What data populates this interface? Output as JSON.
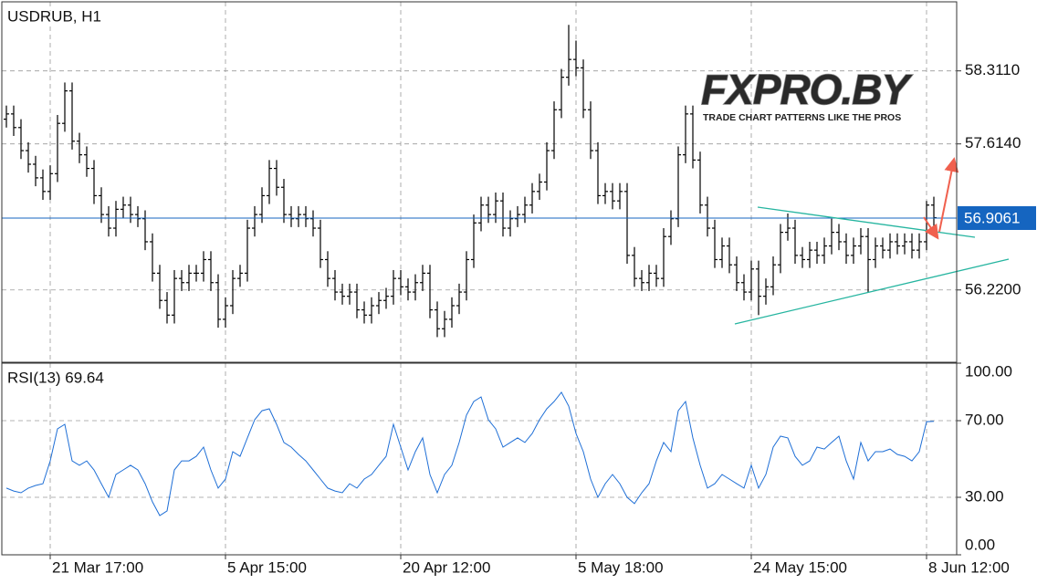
{
  "chart_data": [
    {
      "type": "ohlc",
      "title": "USDRUB, H1",
      "categories": [
        null,
        null,
        null,
        null,
        null,
        null,
        "21 Mar 17:00",
        null,
        null,
        null,
        null,
        null,
        null,
        null,
        null,
        null,
        null,
        null,
        null,
        null,
        null,
        null,
        null,
        null,
        null,
        null,
        null,
        null,
        null,
        null,
        "5 Apr 15:00",
        null,
        null,
        null,
        null,
        null,
        null,
        null,
        null,
        null,
        null,
        null,
        null,
        null,
        null,
        null,
        null,
        null,
        null,
        null,
        null,
        null,
        null,
        null,
        "20 Apr 12:00",
        null,
        null,
        null,
        null,
        null,
        null,
        null,
        null,
        null,
        null,
        null,
        null,
        null,
        null,
        null,
        null,
        null,
        null,
        null,
        null,
        null,
        null,
        null,
        "5 May 18:00",
        null,
        null,
        null,
        null,
        null,
        null,
        null,
        null,
        null,
        null,
        null,
        null,
        null,
        null,
        null,
        null,
        null,
        null,
        null,
        null,
        null,
        null,
        null,
        "24 May 15:00",
        null,
        null,
        null,
        null,
        null,
        null,
        null,
        null,
        null,
        null,
        null,
        null,
        null,
        null,
        null,
        null,
        null,
        null,
        null,
        null,
        null,
        null,
        null,
        "8 Jun 12:00",
        null
      ],
      "open": [
        57.85,
        57.9,
        57.77,
        57.55,
        57.42,
        57.29,
        57.16,
        57.33,
        57.81,
        58.12,
        57.64,
        57.51,
        57.38,
        57.12,
        56.94,
        56.81,
        56.99,
        57.03,
        56.94,
        56.9,
        56.68,
        56.38,
        56.12,
        55.98,
        56.33,
        56.29,
        56.38,
        56.38,
        56.51,
        56.29,
        55.94,
        56.07,
        56.33,
        56.38,
        56.81,
        56.94,
        57.12,
        57.38,
        57.2,
        56.94,
        56.9,
        56.94,
        56.9,
        56.81,
        56.51,
        56.33,
        56.2,
        56.16,
        56.2,
        56.03,
        55.98,
        56.07,
        56.12,
        56.16,
        56.33,
        56.25,
        56.2,
        56.29,
        56.38,
        56.03,
        55.85,
        55.94,
        56.07,
        56.2,
        56.51,
        56.86,
        57.03,
        56.94,
        57.07,
        56.81,
        56.9,
        56.94,
        57.03,
        57.16,
        57.25,
        57.55,
        57.94,
        58.25,
        58.42,
        58.34,
        57.94,
        57.55,
        57.12,
        57.16,
        57.07,
        57.16,
        56.55,
        56.33,
        56.29,
        56.38,
        56.33,
        56.73,
        56.9,
        57.51,
        57.9,
        57.46,
        57.03,
        56.81,
        56.51,
        56.64,
        56.46,
        56.29,
        56.2,
        56.42,
        56.16,
        56.25,
        56.46,
        56.77,
        56.81,
        56.55,
        56.51,
        56.6,
        56.55,
        56.64,
        56.77,
        56.68,
        56.55,
        56.64,
        56.73,
        56.51,
        56.64,
        56.6,
        56.68,
        56.64,
        56.68,
        56.6,
        56.68,
        57.03
      ],
      "high": [
        57.98,
        57.98,
        57.85,
        57.63,
        57.5,
        57.37,
        57.41,
        57.89,
        58.2,
        58.2,
        57.72,
        57.59,
        57.46,
        57.2,
        57.02,
        57.07,
        57.11,
        57.11,
        57.02,
        56.98,
        56.76,
        56.46,
        56.2,
        56.41,
        56.41,
        56.46,
        56.46,
        56.59,
        56.59,
        56.37,
        56.15,
        56.41,
        56.46,
        56.89,
        57.02,
        57.2,
        57.46,
        57.46,
        57.28,
        57.02,
        57.02,
        57.02,
        56.98,
        56.89,
        56.59,
        56.41,
        56.28,
        56.28,
        56.28,
        56.11,
        56.15,
        56.2,
        56.24,
        56.41,
        56.41,
        56.33,
        56.37,
        56.46,
        56.46,
        56.11,
        56.02,
        56.15,
        56.28,
        56.59,
        56.94,
        57.11,
        57.11,
        57.15,
        57.15,
        56.98,
        57.02,
        57.11,
        57.24,
        57.33,
        57.63,
        58.02,
        58.33,
        58.75,
        58.6,
        58.42,
        58.02,
        57.63,
        57.24,
        57.24,
        57.24,
        57.24,
        56.63,
        56.41,
        56.46,
        56.46,
        56.81,
        56.98,
        57.59,
        57.98,
        57.98,
        57.54,
        57.11,
        56.89,
        56.72,
        56.72,
        56.54,
        56.37,
        56.5,
        56.5,
        56.33,
        56.54,
        56.85,
        56.95,
        56.89,
        56.63,
        56.68,
        56.68,
        56.72,
        56.9,
        56.85,
        56.76,
        56.72,
        56.81,
        56.81,
        56.72,
        56.72,
        56.76,
        56.76,
        56.76,
        56.76,
        56.76,
        57.07,
        57.11
      ],
      "low": [
        57.77,
        57.69,
        57.47,
        57.34,
        57.21,
        57.08,
        57.08,
        57.25,
        57.73,
        57.56,
        57.43,
        57.3,
        57.04,
        56.86,
        56.73,
        56.73,
        56.91,
        56.86,
        56.82,
        56.6,
        56.3,
        56.04,
        55.9,
        55.9,
        56.21,
        56.21,
        56.3,
        56.3,
        56.21,
        55.86,
        55.86,
        55.99,
        56.25,
        56.3,
        56.73,
        56.86,
        57.04,
        57.12,
        56.86,
        56.82,
        56.82,
        56.82,
        56.73,
        56.43,
        56.25,
        56.12,
        56.08,
        56.08,
        55.95,
        55.9,
        55.9,
        55.99,
        56.04,
        56.08,
        56.17,
        56.12,
        56.12,
        56.21,
        55.95,
        55.77,
        55.77,
        55.86,
        55.99,
        56.12,
        56.43,
        56.78,
        56.86,
        56.86,
        56.73,
        56.73,
        56.82,
        56.86,
        56.95,
        57.08,
        57.17,
        57.47,
        57.86,
        58.17,
        58.26,
        57.86,
        57.47,
        57.04,
        57.04,
        56.99,
        56.99,
        56.47,
        56.25,
        56.21,
        56.21,
        56.25,
        56.25,
        56.65,
        56.82,
        57.43,
        57.38,
        56.95,
        56.73,
        56.43,
        56.43,
        56.38,
        56.21,
        56.12,
        56.12,
        55.98,
        56.08,
        56.17,
        56.38,
        56.69,
        56.47,
        56.43,
        56.43,
        56.47,
        56.47,
        56.56,
        56.6,
        56.47,
        56.47,
        56.56,
        56.2,
        56.43,
        56.52,
        56.52,
        56.56,
        56.56,
        56.52,
        56.52,
        56.6,
        56.83
      ],
      "close": [
        57.9,
        57.77,
        57.55,
        57.42,
        57.29,
        57.16,
        57.33,
        57.81,
        58.12,
        57.64,
        57.51,
        57.38,
        57.12,
        56.94,
        56.81,
        56.99,
        57.03,
        56.94,
        56.9,
        56.68,
        56.38,
        56.12,
        55.98,
        56.33,
        56.29,
        56.38,
        56.38,
        56.51,
        56.29,
        55.94,
        56.07,
        56.33,
        56.38,
        56.81,
        56.94,
        57.12,
        57.38,
        57.2,
        56.94,
        56.9,
        56.94,
        56.9,
        56.81,
        56.51,
        56.33,
        56.2,
        56.16,
        56.2,
        56.03,
        55.98,
        56.07,
        56.12,
        56.16,
        56.33,
        56.25,
        56.2,
        56.29,
        56.38,
        56.03,
        55.85,
        55.94,
        56.07,
        56.2,
        56.51,
        56.86,
        57.03,
        56.94,
        57.07,
        56.81,
        56.9,
        56.94,
        57.03,
        57.16,
        57.25,
        57.55,
        57.94,
        58.25,
        58.42,
        58.34,
        57.94,
        57.55,
        57.12,
        57.16,
        57.07,
        57.16,
        56.55,
        56.33,
        56.29,
        56.38,
        56.33,
        56.73,
        56.9,
        57.51,
        57.9,
        57.46,
        57.03,
        56.81,
        56.51,
        56.64,
        56.46,
        56.29,
        56.2,
        56.42,
        56.16,
        56.25,
        56.46,
        56.77,
        56.81,
        56.55,
        56.51,
        56.6,
        56.55,
        56.64,
        56.77,
        56.68,
        56.55,
        56.64,
        56.73,
        56.51,
        56.64,
        56.6,
        56.68,
        56.64,
        56.68,
        56.6,
        56.68,
        57.03,
        56.91
      ],
      "color": "#000000",
      "ylim": [
        55.53,
        58.97
      ],
      "yticks": [
        {
          "value": 58.311,
          "label": "58.3110"
        },
        {
          "value": 57.614,
          "label": "57.6140"
        },
        {
          "value": 56.22,
          "label": "56.2200"
        }
      ],
      "grid": true,
      "last_price": 56.9061,
      "last_price_color": "#1565c0",
      "logo": "FXPRO.BY",
      "logo_tagline": "TRADE CHART PATTERNS LIKE THE PROS"
    },
    {
      "type": "line",
      "title": "RSI(13) 69.64",
      "values": [
        34.8,
        33.3,
        32.4,
        34.8,
        36.2,
        37.1,
        49,
        65.7,
        68.1,
        49,
        46.7,
        49,
        44.3,
        37.1,
        30,
        41.9,
        44.3,
        46.7,
        44.3,
        37.1,
        27.6,
        20.5,
        22.9,
        44.3,
        49,
        49,
        51.4,
        56.2,
        44.3,
        34.8,
        39.5,
        53.8,
        51.4,
        61,
        70.5,
        75.2,
        76.2,
        68.1,
        58.6,
        56.2,
        52.4,
        49,
        44.3,
        39.5,
        34.8,
        33.3,
        32.4,
        37.1,
        34.8,
        39.5,
        41.9,
        46.7,
        51.4,
        68.1,
        56.2,
        44.3,
        53.8,
        61,
        41.9,
        32.4,
        41.9,
        46.7,
        58.6,
        72.9,
        80,
        82.4,
        70.5,
        65.7,
        56.2,
        58.6,
        61,
        58.6,
        63.3,
        70.5,
        76.2,
        80,
        84.8,
        77.6,
        63.3,
        53.8,
        39.5,
        30,
        37.1,
        41.9,
        37.1,
        30,
        26.7,
        32.4,
        37.1,
        49,
        58.6,
        53.8,
        75.2,
        80,
        61,
        46.7,
        34.8,
        37.1,
        41.9,
        39.5,
        37.1,
        34.8,
        46.7,
        34.8,
        41.9,
        56.2,
        61.9,
        61,
        51.4,
        46.7,
        49,
        56.2,
        55.2,
        58.6,
        61.9,
        49,
        39.5,
        58.6,
        49,
        53.8,
        53.8,
        55.2,
        52.4,
        51.4,
        49,
        53.8,
        69.5,
        69.64
      ],
      "color": "#1f6fd6",
      "ylim": [
        0,
        100
      ],
      "yticks": [
        {
          "value": 100,
          "label": "100.00"
        },
        {
          "value": 70,
          "label": "70.00"
        },
        {
          "value": 30,
          "label": "30.00"
        },
        {
          "value": 0,
          "label": "0.00"
        }
      ],
      "grid": true
    }
  ]
}
